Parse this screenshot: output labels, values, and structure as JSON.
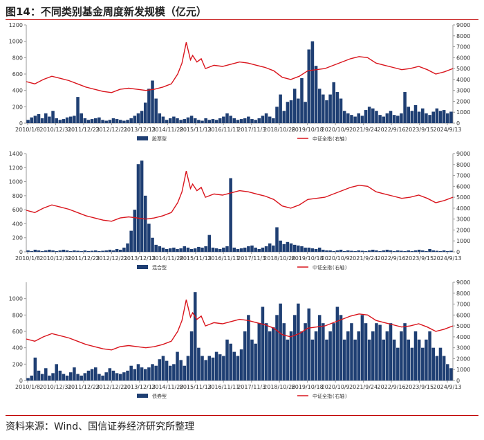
{
  "figure": {
    "title": "图14：不同类别基金周度新发规模（亿元）",
    "source": "资料来源：Wind、国信证券经济研究所整理"
  },
  "colors": {
    "bar": "#1f3f73",
    "line": "#d9141c",
    "axis": "#999999"
  },
  "chart_data": [
    {
      "type": "bar+line",
      "xtick_labels": [
        "2010/1/8",
        "2010/12/31",
        "2011/12/23",
        "2012/12/21",
        "2013/12/13",
        "2014/11/28",
        "2015/11/13",
        "2016/11/11",
        "2017/11/3",
        "2018/10/26",
        "2019/10/18",
        "2020/10/9",
        "2021/9/24",
        "2022/9/16",
        "2023/9/15",
        "2024/9/13"
      ],
      "ylim_left": [
        0,
        1200
      ],
      "yticks_left": [
        0,
        200,
        400,
        600,
        800,
        1000,
        1200
      ],
      "ylim_right": [
        0,
        9000
      ],
      "yticks_right": [
        0,
        1000,
        2000,
        3000,
        4000,
        5000,
        6000,
        7000,
        8000,
        9000
      ],
      "series": [
        {
          "name": "股票型",
          "axis": "left",
          "kind": "bar",
          "values": [
            40,
            70,
            90,
            110,
            60,
            120,
            80,
            150,
            60,
            40,
            50,
            70,
            80,
            90,
            320,
            120,
            60,
            40,
            50,
            60,
            70,
            40,
            30,
            40,
            60,
            50,
            40,
            30,
            40,
            60,
            90,
            120,
            150,
            250,
            420,
            520,
            300,
            120,
            80,
            40,
            60,
            80,
            60,
            40,
            50,
            70,
            90,
            60,
            40,
            30,
            60,
            40,
            50,
            40,
            60,
            80,
            120,
            90,
            60,
            40,
            50,
            60,
            80,
            50,
            40,
            60,
            90,
            120,
            80,
            60,
            200,
            350,
            150,
            260,
            280,
            420,
            300,
            550,
            260,
            900,
            1000,
            700,
            420,
            350,
            280,
            350,
            500,
            380,
            300,
            150,
            120,
            100,
            80,
            120,
            90,
            160,
            200,
            180,
            150,
            100,
            80,
            120,
            150,
            100,
            90,
            120,
            380,
            200,
            150,
            220,
            140,
            180,
            120,
            100,
            140,
            180,
            150,
            160,
            120,
            140
          ]
        },
        {
          "name": "中证全指(右轴)",
          "axis": "right",
          "kind": "line",
          "x": [
            0,
            0.02,
            0.04,
            0.06,
            0.08,
            0.1,
            0.12,
            0.14,
            0.16,
            0.18,
            0.2,
            0.22,
            0.24,
            0.26,
            0.28,
            0.3,
            0.32,
            0.34,
            0.355,
            0.365,
            0.375,
            0.385,
            0.39,
            0.4,
            0.41,
            0.42,
            0.44,
            0.46,
            0.48,
            0.5,
            0.52,
            0.54,
            0.56,
            0.58,
            0.6,
            0.62,
            0.64,
            0.66,
            0.68,
            0.7,
            0.72,
            0.74,
            0.76,
            0.78,
            0.8,
            0.82,
            0.84,
            0.86,
            0.88,
            0.9,
            0.92,
            0.94,
            0.96,
            0.98,
            1.0
          ],
          "values": [
            3800,
            3600,
            4000,
            4300,
            4100,
            3900,
            3600,
            3300,
            3100,
            2900,
            2800,
            3100,
            3200,
            3100,
            3000,
            3100,
            3300,
            3600,
            4500,
            5500,
            7400,
            5800,
            6200,
            5600,
            5900,
            5000,
            5300,
            5200,
            5400,
            5600,
            5500,
            5300,
            5100,
            4800,
            4200,
            4000,
            4300,
            4800,
            4900,
            5000,
            5300,
            5600,
            5900,
            6100,
            6000,
            5500,
            5300,
            5100,
            4900,
            5000,
            5200,
            4900,
            4500,
            4700,
            5000
          ]
        }
      ]
    },
    {
      "type": "bar+line",
      "xtick_labels": [
        "2010/1/8",
        "2010/12/31",
        "2011/12/23",
        "2012/12/21",
        "2013/12/13",
        "2014/11/28",
        "2015/11/13",
        "2016/11/11",
        "2017/11/3",
        "2018/10/26",
        "2019/10/18",
        "2020/10/9",
        "2021/9/24",
        "2022/9/16",
        "2023/9/15",
        "2024/9/13"
      ],
      "ylim_left": [
        0,
        1400
      ],
      "yticks_left": [
        0,
        200,
        400,
        600,
        800,
        1000,
        1200,
        1400
      ],
      "ylim_right": [
        0,
        9000
      ],
      "yticks_right": [
        0,
        1000,
        2000,
        3000,
        4000,
        5000,
        6000,
        7000,
        8000,
        9000
      ],
      "series": [
        {
          "name": "混合型",
          "axis": "left",
          "kind": "bar",
          "values": [
            20,
            10,
            30,
            20,
            10,
            20,
            30,
            20,
            10,
            20,
            30,
            20,
            10,
            20,
            15,
            10,
            20,
            10,
            15,
            20,
            10,
            15,
            20,
            30,
            20,
            40,
            30,
            60,
            120,
            300,
            600,
            1250,
            1300,
            800,
            400,
            200,
            100,
            80,
            60,
            40,
            50,
            60,
            40,
            50,
            80,
            60,
            40,
            50,
            70,
            60,
            80,
            240,
            60,
            50,
            40,
            60,
            80,
            1050,
            60,
            40,
            50,
            60,
            80,
            90,
            60,
            40,
            60,
            80,
            120,
            90,
            350,
            160,
            110,
            140,
            120,
            100,
            90,
            80,
            60,
            60,
            50,
            40,
            60,
            30,
            20,
            20,
            10,
            20,
            30,
            10,
            20,
            15,
            10,
            20,
            15,
            10,
            20,
            30,
            20,
            10,
            20,
            30,
            20,
            10,
            20,
            15,
            10,
            20,
            10,
            20,
            30,
            20,
            10,
            40,
            20,
            15,
            10,
            20,
            10,
            15
          ]
        },
        {
          "name": "中证全指(右轴)",
          "axis": "right",
          "kind": "line",
          "x": [
            0,
            0.02,
            0.04,
            0.06,
            0.08,
            0.1,
            0.12,
            0.14,
            0.16,
            0.18,
            0.2,
            0.22,
            0.24,
            0.26,
            0.28,
            0.3,
            0.32,
            0.34,
            0.355,
            0.365,
            0.375,
            0.385,
            0.39,
            0.4,
            0.41,
            0.42,
            0.44,
            0.46,
            0.48,
            0.5,
            0.52,
            0.54,
            0.56,
            0.58,
            0.6,
            0.62,
            0.64,
            0.66,
            0.68,
            0.7,
            0.72,
            0.74,
            0.76,
            0.78,
            0.8,
            0.82,
            0.84,
            0.86,
            0.88,
            0.9,
            0.92,
            0.94,
            0.96,
            0.98,
            1.0
          ],
          "values": [
            3800,
            3600,
            4000,
            4300,
            4100,
            3900,
            3600,
            3300,
            3100,
            2900,
            2800,
            3100,
            3200,
            3100,
            3000,
            3100,
            3300,
            3600,
            4500,
            5500,
            7400,
            5800,
            6200,
            5600,
            5900,
            5000,
            5300,
            5200,
            5400,
            5600,
            5500,
            5300,
            5100,
            4800,
            4200,
            4000,
            4300,
            4800,
            4900,
            5000,
            5300,
            5600,
            5900,
            6100,
            6000,
            5500,
            5300,
            5100,
            4900,
            5000,
            5200,
            4900,
            4500,
            4700,
            5000
          ]
        }
      ]
    },
    {
      "type": "bar+line",
      "xtick_labels": [
        "2010/1/8",
        "2010/12/31",
        "2011/12/23",
        "2012/12/21",
        "2013/12/13",
        "2014/11/28",
        "2015/11/13",
        "2016/11/11",
        "2017/11/3",
        "2018/10/26",
        "2019/10/18",
        "2020/10/9",
        "2021/9/24",
        "2022/9/16",
        "2023/9/15",
        "2024/9/13"
      ],
      "ylim_left": [
        0,
        1200
      ],
      "yticks_left": [
        0,
        200,
        400,
        600,
        800,
        1000
      ],
      "ylim_right": [
        0,
        9000
      ],
      "yticks_right": [
        0,
        1000,
        2000,
        3000,
        4000,
        5000,
        6000,
        7000,
        8000,
        9000
      ],
      "series": [
        {
          "name": "债券型",
          "axis": "left",
          "kind": "bar",
          "values": [
            30,
            60,
            280,
            120,
            80,
            150,
            60,
            90,
            200,
            120,
            80,
            60,
            100,
            160,
            80,
            60,
            90,
            120,
            140,
            160,
            80,
            60,
            100,
            150,
            120,
            90,
            80,
            100,
            120,
            180,
            140,
            200,
            160,
            140,
            160,
            200,
            180,
            260,
            300,
            240,
            180,
            200,
            350,
            250,
            180,
            300,
            600,
            1080,
            400,
            300,
            250,
            300,
            280,
            350,
            320,
            300,
            500,
            450,
            350,
            300,
            380,
            600,
            800,
            500,
            450,
            700,
            900,
            700,
            600,
            650,
            800,
            940,
            700,
            500,
            600,
            800,
            940,
            600,
            700,
            880,
            500,
            600,
            800,
            700,
            500,
            600,
            700,
            900,
            800,
            500,
            600,
            700,
            500,
            600,
            800,
            700,
            500,
            600,
            700,
            680,
            500,
            600,
            700,
            500,
            400,
            600,
            700,
            500,
            400,
            600,
            500,
            400,
            500,
            600,
            400,
            300,
            400,
            300,
            200,
            150
          ]
        },
        {
          "name": "中证全指(右轴)",
          "axis": "right",
          "kind": "line",
          "x": [
            0,
            0.02,
            0.04,
            0.06,
            0.08,
            0.1,
            0.12,
            0.14,
            0.16,
            0.18,
            0.2,
            0.22,
            0.24,
            0.26,
            0.28,
            0.3,
            0.32,
            0.34,
            0.355,
            0.365,
            0.375,
            0.385,
            0.39,
            0.4,
            0.41,
            0.42,
            0.44,
            0.46,
            0.48,
            0.5,
            0.52,
            0.54,
            0.56,
            0.58,
            0.6,
            0.62,
            0.64,
            0.66,
            0.68,
            0.7,
            0.72,
            0.74,
            0.76,
            0.78,
            0.8,
            0.82,
            0.84,
            0.86,
            0.88,
            0.9,
            0.92,
            0.94,
            0.96,
            0.98,
            1.0
          ],
          "values": [
            3800,
            3600,
            4000,
            4300,
            4100,
            3900,
            3600,
            3300,
            3100,
            2900,
            2800,
            3100,
            3200,
            3100,
            3000,
            3100,
            3300,
            3600,
            4500,
            5500,
            7400,
            5800,
            6200,
            5600,
            5900,
            5000,
            5300,
            5200,
            5400,
            5600,
            5500,
            5300,
            5100,
            4800,
            4200,
            4000,
            4300,
            4800,
            4900,
            5000,
            5300,
            5600,
            5900,
            6100,
            6000,
            5500,
            5300,
            5100,
            4900,
            5000,
            5200,
            4900,
            4500,
            4700,
            5000
          ]
        }
      ]
    }
  ]
}
